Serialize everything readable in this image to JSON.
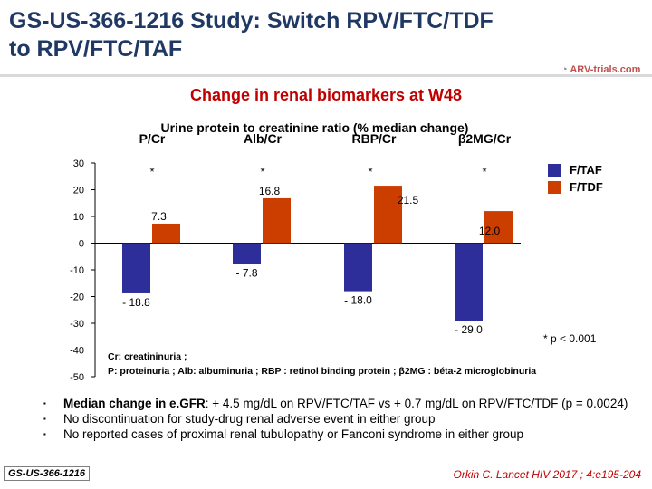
{
  "header": {
    "title_line1": "GS-US-366-1216 Study: Switch RPV/FTC/TDF",
    "title_line2": "to RPV/FTC/TAF",
    "logo_text": "ARV-trials.com"
  },
  "chart_data": {
    "type": "bar",
    "title": "Change in renal biomarkers at W48",
    "subtitle": "Urine protein to creatinine ratio (% median change)",
    "categories": [
      "P/Cr",
      "Alb/Cr",
      "RBP/Cr",
      "β2MG/Cr"
    ],
    "series": [
      {
        "name": "F/TAF",
        "color": "#2e2e9a",
        "values": [
          -18.8,
          -7.8,
          -18.0,
          -29.0
        ],
        "labels": [
          "- 18.8",
          "- 7.8",
          "- 18.0",
          "- 29.0"
        ]
      },
      {
        "name": "F/TDF",
        "color": "#cc3d00",
        "values": [
          7.3,
          16.8,
          21.5,
          12.0
        ],
        "labels": [
          "7.3",
          "16.8",
          "21.5",
          "12.0"
        ]
      }
    ],
    "significance_markers": [
      "*",
      "*",
      "*",
      "*"
    ],
    "yticks": [
      30,
      20,
      10,
      0,
      -10,
      -20,
      -30,
      -40,
      -50
    ],
    "ytick_labels": [
      "30",
      "20",
      "10",
      "0",
      "-10",
      "-20",
      "-30",
      "-40",
      "-50"
    ],
    "ylim": [
      -50,
      30
    ],
    "legend_position": "top-right"
  },
  "notes": {
    "pvalue": "* p < 0.001",
    "abbrev_line1": "Cr: creatininuria ;",
    "abbrev_line2": "P: proteinuria ; Alb: albuminuria ; RBP : retinol binding protein ; β2MG : béta-2 microglobinuria"
  },
  "bullets": {
    "b1_lead": "Median change in e.GFR",
    "b1_rest": ": + 4.5 mg/dL on RPV/FTC/TAF vs + 0.7 mg/dL on RPV/FTC/TDF (p = 0.0024)",
    "b2": "No discontinuation for study-drug renal adverse event in either group",
    "b3": "No reported cases of proximal renal tubulopathy or Fanconi syndrome in either group",
    "marker": "▪"
  },
  "footer": {
    "study_id": "GS-US-366-1216",
    "citation": "Orkin C. Lancet HIV 2017 ; 4:e195-204"
  }
}
